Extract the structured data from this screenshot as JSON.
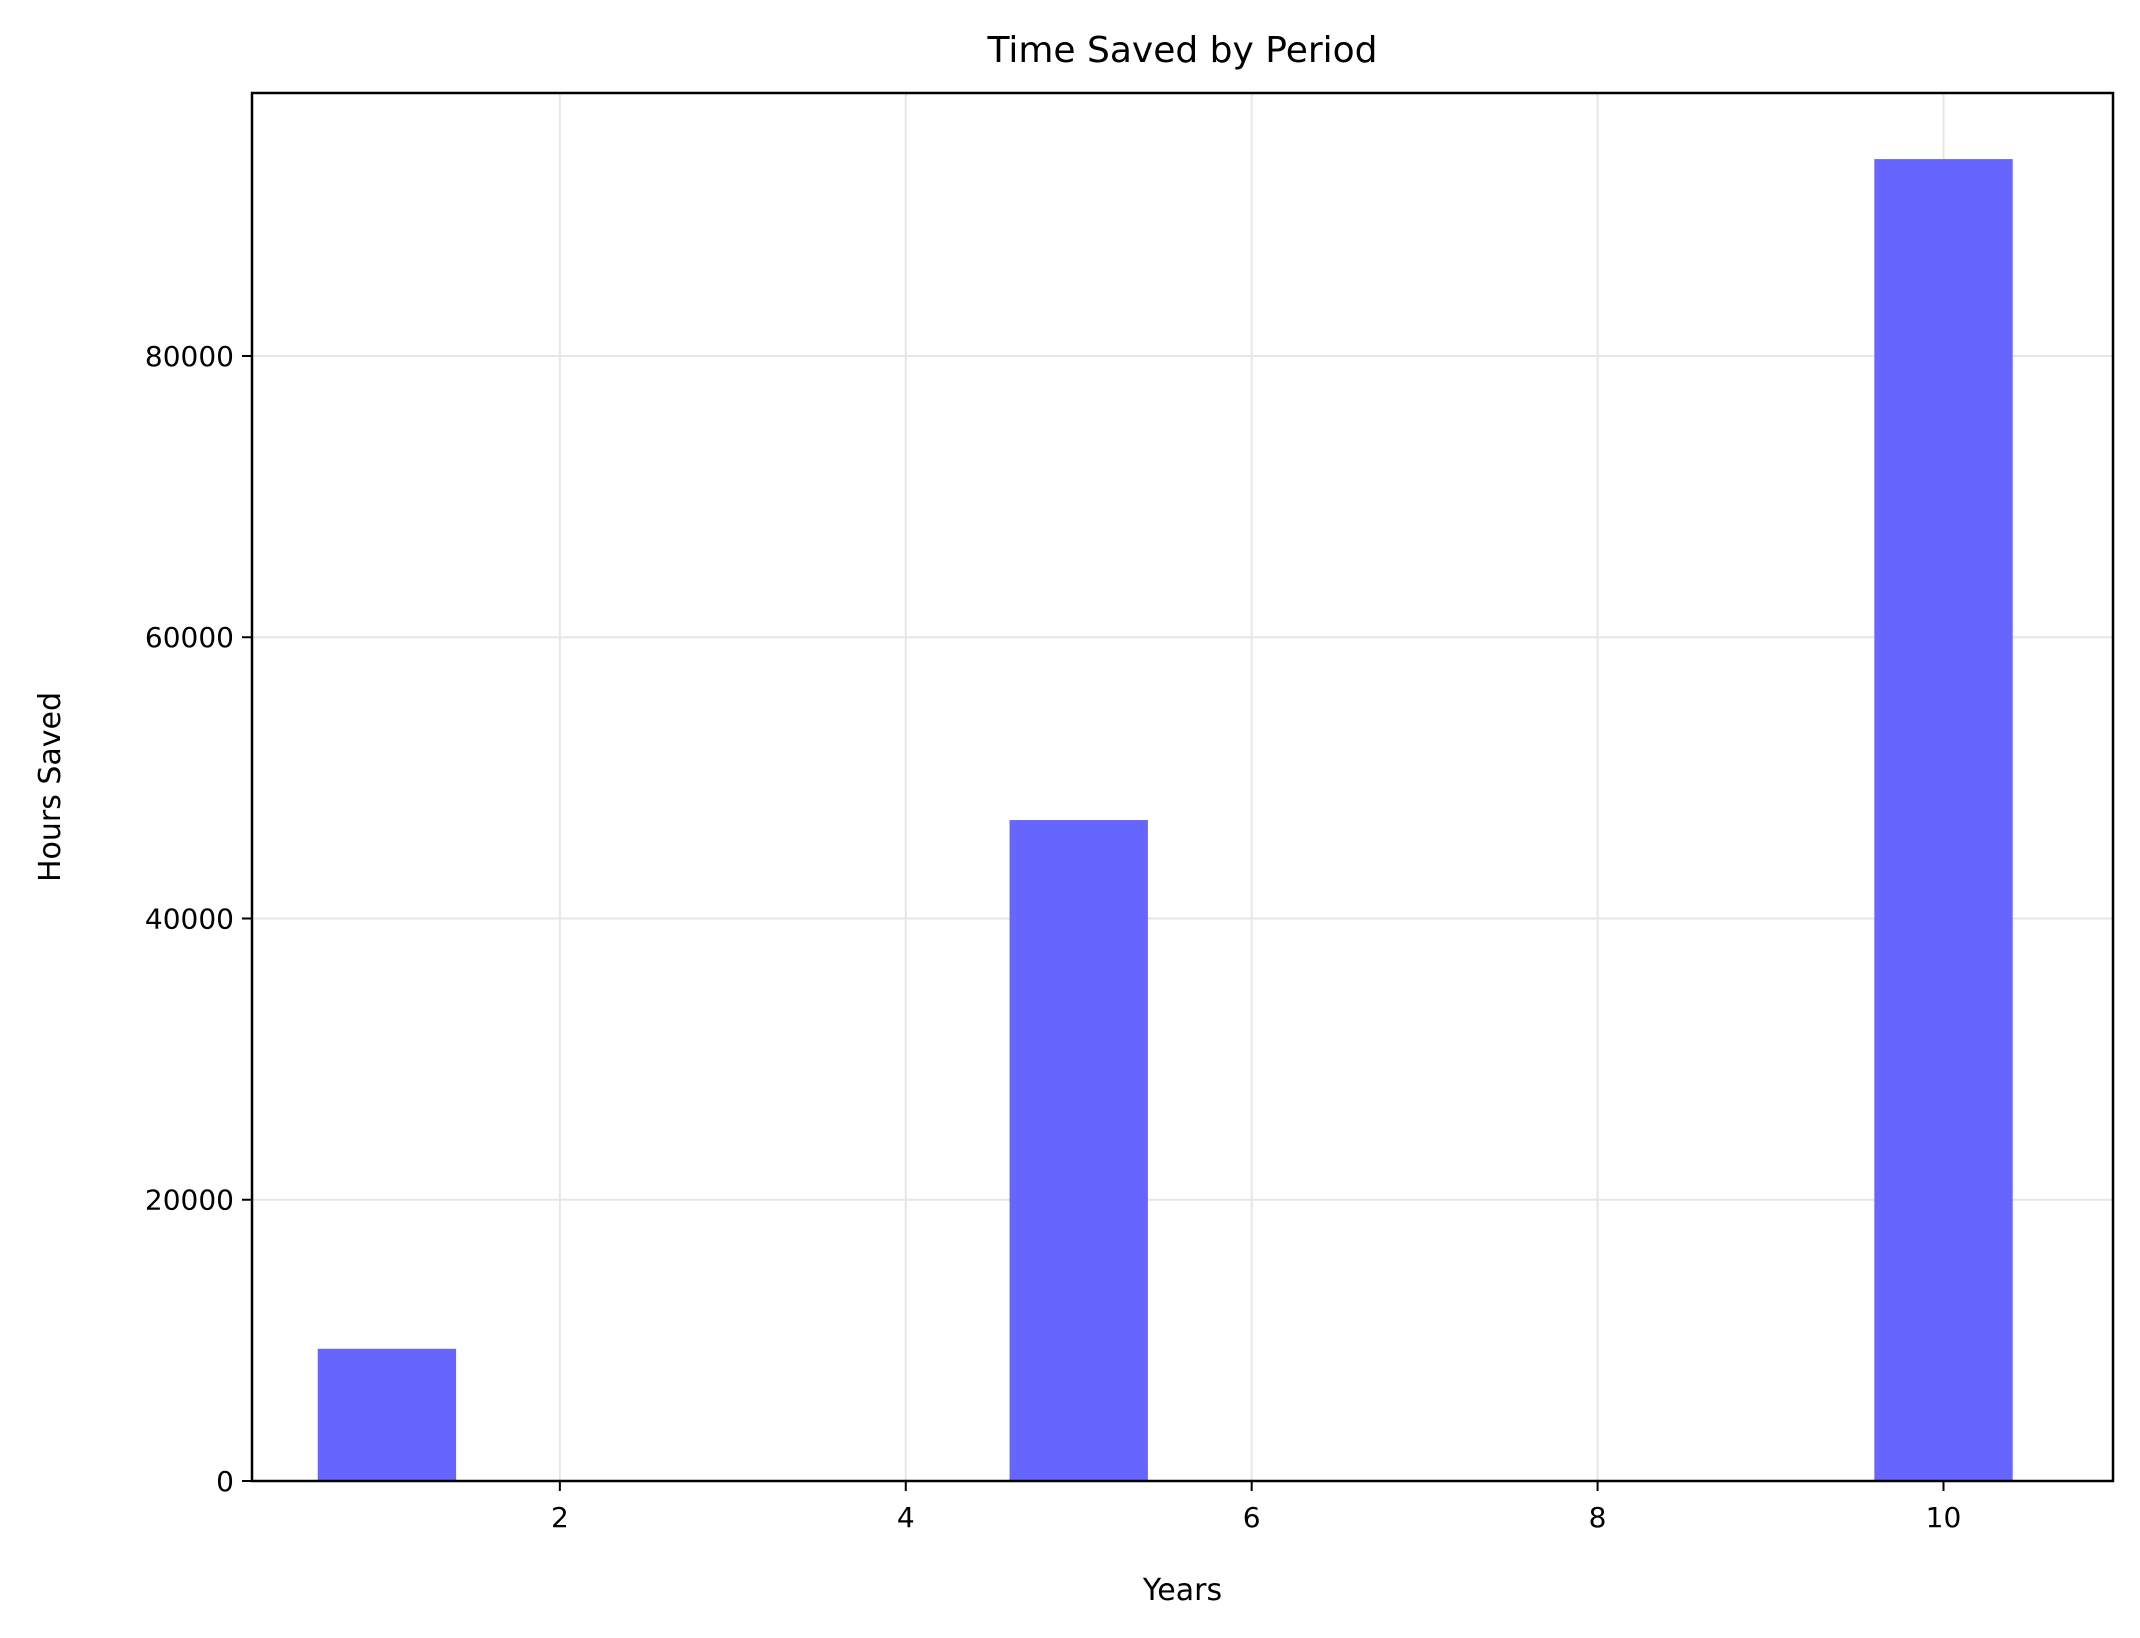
{
  "chart_data": {
    "type": "bar",
    "title": "Time Saved by Period",
    "xlabel": "Years",
    "ylabel": "Hours Saved",
    "x": [
      1,
      5,
      10
    ],
    "values": [
      9400,
      47000,
      94000
    ],
    "bar_width": 0.8,
    "xlim": [
      0.22,
      10.98
    ],
    "ylim": [
      0,
      98700
    ],
    "xticks": [
      2,
      4,
      6,
      8,
      10
    ],
    "yticks": [
      0,
      20000,
      40000,
      60000,
      80000
    ],
    "grid": true,
    "bar_color": "#6666ff",
    "grid_color": "#e6e6e6"
  }
}
